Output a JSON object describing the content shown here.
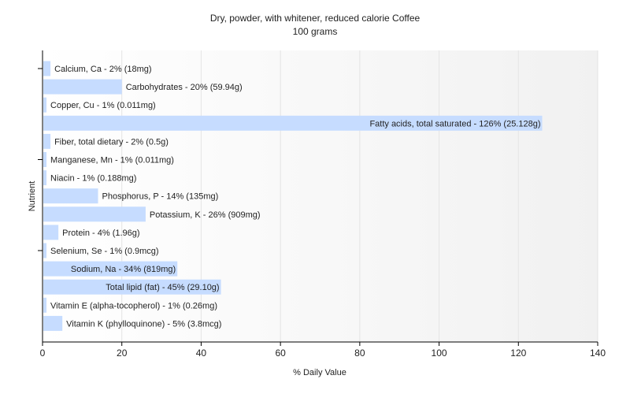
{
  "chart_data": {
    "type": "bar",
    "orientation": "horizontal",
    "title": "Dry, powder, with whitener, reduced calorie Coffee",
    "subtitle": "100 grams",
    "xlabel": "% Daily Value",
    "ylabel": "Nutrient",
    "xlim": [
      0,
      140
    ],
    "xticks": [
      0,
      20,
      40,
      60,
      80,
      100,
      120,
      140
    ],
    "grid": true,
    "bar_color": "#c6dcff",
    "categories": [
      "Calcium, Ca",
      "Carbohydrates",
      "Copper, Cu",
      "Fatty acids, total saturated",
      "Fiber, total dietary",
      "Manganese, Mn",
      "Niacin",
      "Phosphorus, P",
      "Potassium, K",
      "Protein",
      "Selenium, Se",
      "Sodium, Na",
      "Total lipid (fat)",
      "Vitamin E (alpha-tocopherol)",
      "Vitamin K (phylloquinone)"
    ],
    "values": [
      2,
      20,
      1,
      126,
      2,
      1,
      1,
      14,
      26,
      4,
      1,
      34,
      45,
      1,
      5
    ],
    "labels": [
      "Calcium, Ca - 2% (18mg)",
      "Carbohydrates - 20% (59.94g)",
      "Copper, Cu - 1% (0.011mg)",
      "Fatty acids, total saturated - 126% (25.128g)",
      "Fiber, total dietary - 2% (0.5g)",
      "Manganese, Mn - 1% (0.011mg)",
      "Niacin - 1% (0.188mg)",
      "Phosphorus, P - 14% (135mg)",
      "Potassium, K - 26% (909mg)",
      "Protein - 4% (1.96g)",
      "Selenium, Se - 1% (0.9mcg)",
      "Sodium, Na - 34% (819mg)",
      "Total lipid (fat) - 45% (29.10g)",
      "Vitamin E (alpha-tocopherol) - 1% (0.26mg)",
      "Vitamin K (phylloquinone) - 5% (3.8mcg)"
    ]
  }
}
